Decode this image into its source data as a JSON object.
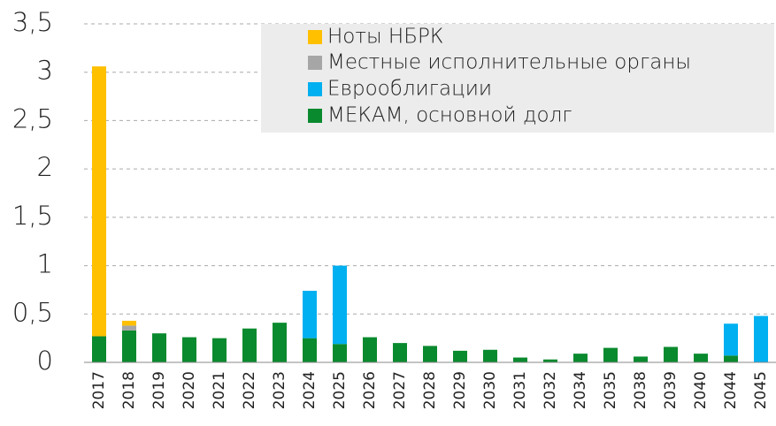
{
  "chart_data": {
    "type": "stacked_bar",
    "categories": [
      "2017",
      "2018",
      "2019",
      "2020",
      "2021",
      "2022",
      "2023",
      "2024",
      "2025",
      "2026",
      "2027",
      "2028",
      "2029",
      "2030",
      "2031",
      "2032",
      "2034",
      "2035",
      "2038",
      "2039",
      "2040",
      "2044",
      "2045"
    ],
    "series": [
      {
        "name": "Ноты НБРК",
        "color": "#FFC000",
        "values": [
          2.79,
          0.05,
          0,
          0,
          0,
          0,
          0,
          0,
          0,
          0,
          0,
          0,
          0,
          0,
          0,
          0,
          0,
          0,
          0,
          0,
          0,
          0,
          0
        ]
      },
      {
        "name": "Местные исполнительные органы",
        "color": "#A6A6A6",
        "values": [
          0,
          0.05,
          0,
          0,
          0,
          0,
          0,
          0,
          0,
          0,
          0,
          0,
          0,
          0,
          0,
          0,
          0,
          0,
          0,
          0,
          0,
          0,
          0
        ]
      },
      {
        "name": "Еврооблигации",
        "color": "#00B0F0",
        "values": [
          0,
          0,
          0,
          0,
          0,
          0,
          0,
          0.49,
          0.81,
          0,
          0,
          0,
          0,
          0,
          0,
          0,
          0,
          0,
          0,
          0,
          0,
          0.33,
          0.48
        ]
      },
      {
        "name": "МЕКАМ, основной долг",
        "color": "#0A8A2E",
        "values": [
          0.27,
          0.33,
          0.3,
          0.26,
          0.25,
          0.35,
          0.41,
          0.25,
          0.19,
          0.26,
          0.2,
          0.17,
          0.12,
          0.13,
          0.05,
          0.03,
          0.09,
          0.15,
          0.06,
          0.16,
          0.09,
          0.07,
          0
        ]
      }
    ],
    "ylim": [
      0,
      3.5
    ],
    "yticks": [
      0,
      {
        "value": 0.5,
        "label": "0,5"
      },
      1,
      {
        "value": 1.5,
        "label": "1,5"
      },
      2,
      {
        "value": 2.5,
        "label": "2,5"
      },
      3,
      {
        "value": 3.5,
        "label": "3,5"
      }
    ],
    "grid": true
  }
}
